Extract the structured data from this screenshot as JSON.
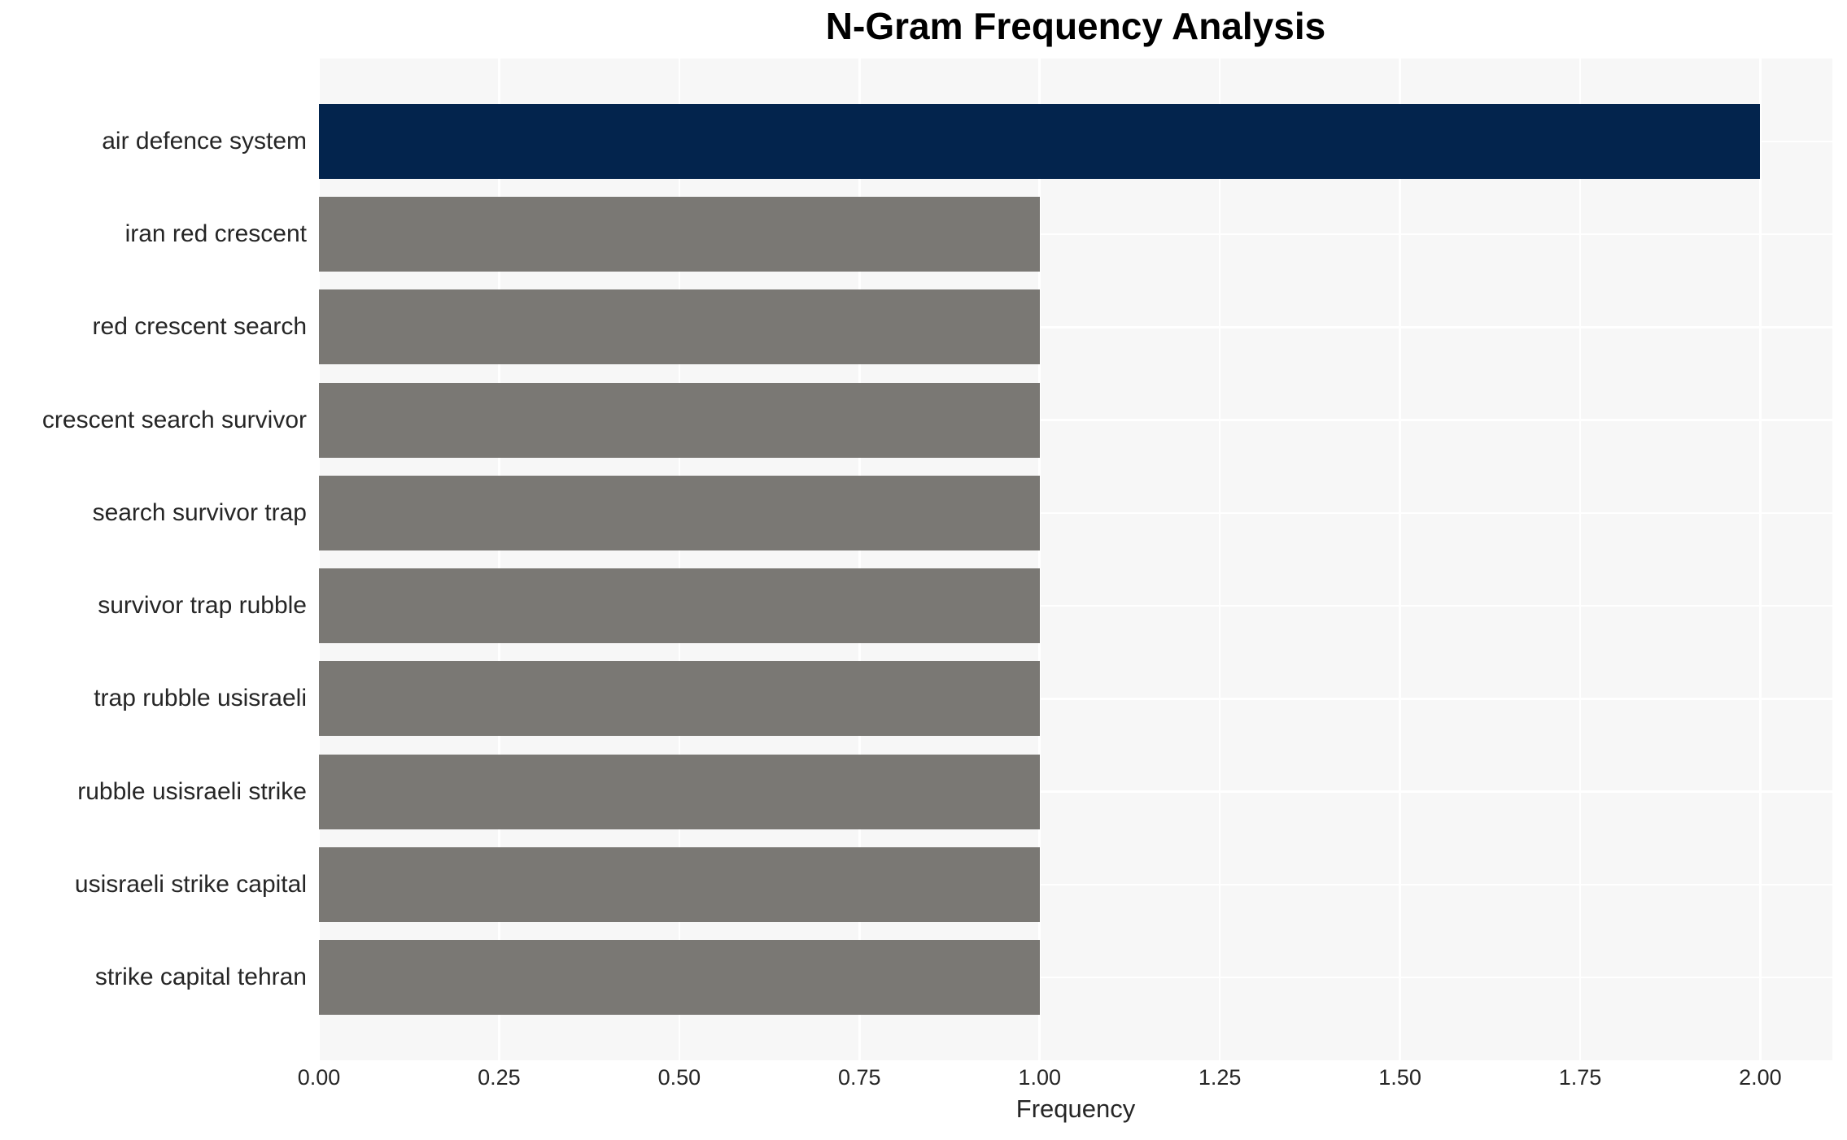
{
  "chart_data": {
    "type": "bar",
    "orientation": "horizontal",
    "title": "N-Gram Frequency Analysis",
    "xlabel": "Frequency",
    "ylabel": "",
    "categories": [
      "air defence system",
      "iran red crescent",
      "red crescent search",
      "crescent search survivor",
      "search survivor trap",
      "survivor trap rubble",
      "trap rubble usisraeli",
      "rubble usisraeli strike",
      "usisraeli strike capital",
      "strike capital tehran"
    ],
    "values": [
      2,
      1,
      1,
      1,
      1,
      1,
      1,
      1,
      1,
      1
    ],
    "xlim": [
      0,
      2.1
    ],
    "xticks": [
      "0.00",
      "0.25",
      "0.50",
      "0.75",
      "1.00",
      "1.25",
      "1.50",
      "1.75",
      "2.00"
    ],
    "xtick_values": [
      0,
      0.25,
      0.5,
      0.75,
      1.0,
      1.25,
      1.5,
      1.75,
      2.0
    ],
    "grid": true,
    "legend": false,
    "bar_colors": [
      "#03244d",
      "#7a7874",
      "#7a7874",
      "#7a7874",
      "#7a7874",
      "#7a7874",
      "#7a7874",
      "#7a7874",
      "#7a7874",
      "#7a7874"
    ],
    "colors": {
      "highlight_bar": "#03244d",
      "default_bar": "#7a7874",
      "plot_background": "#f7f7f7",
      "gridline": "#ffffff",
      "tick_text": "#262626",
      "title_text": "#000000"
    }
  }
}
